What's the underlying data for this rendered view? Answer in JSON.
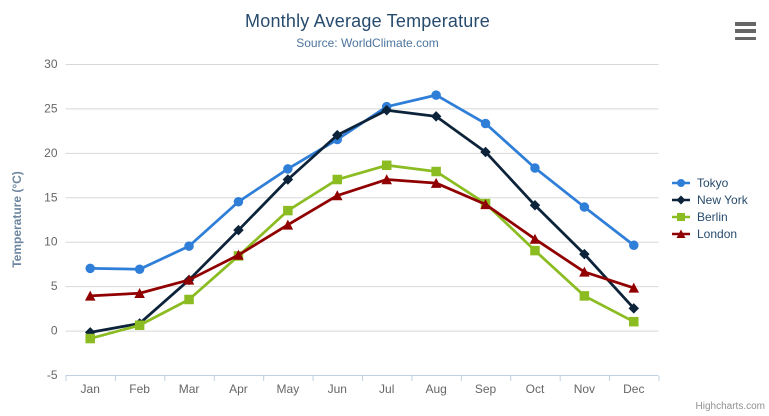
{
  "chart_data": {
    "type": "line",
    "title": "Monthly Average Temperature",
    "subtitle": "Source: WorldClimate.com",
    "categories": [
      "Jan",
      "Feb",
      "Mar",
      "Apr",
      "May",
      "Jun",
      "Jul",
      "Aug",
      "Sep",
      "Oct",
      "Nov",
      "Dec"
    ],
    "series": [
      {
        "name": "Tokyo",
        "color": "#2f7ed8",
        "marker": "circle",
        "values": [
          7.0,
          6.9,
          9.5,
          14.5,
          18.2,
          21.5,
          25.2,
          26.5,
          23.3,
          18.3,
          13.9,
          9.6
        ]
      },
      {
        "name": "New York",
        "color": "#0d233a",
        "marker": "diamond",
        "values": [
          -0.2,
          0.8,
          5.7,
          11.3,
          17.0,
          22.0,
          24.8,
          24.1,
          20.1,
          14.1,
          8.6,
          2.5
        ]
      },
      {
        "name": "Berlin",
        "color": "#8bbc21",
        "marker": "square",
        "values": [
          -0.9,
          0.6,
          3.5,
          8.4,
          13.5,
          17.0,
          18.6,
          17.9,
          14.3,
          9.0,
          3.9,
          1.0
        ]
      },
      {
        "name": "London",
        "color": "#910000",
        "marker": "triangle",
        "values": [
          3.9,
          4.2,
          5.7,
          8.5,
          11.9,
          15.2,
          17.0,
          16.6,
          14.2,
          10.3,
          6.6,
          4.8
        ]
      }
    ],
    "xlabel": "",
    "ylabel": "Temperature (°C)",
    "ylim": [
      -5,
      30
    ],
    "tick_interval": 5,
    "grid": true,
    "legend_position": "right-middle",
    "axis_colors": {
      "grid_line": "#d8d8d8",
      "axis_line": "#c0d0e0",
      "tick_label": "#666666",
      "axis_title": "#6d869f"
    }
  },
  "ui": {
    "menu_icon": "hamburger-menu-icon",
    "credits": "Highcharts.com"
  }
}
